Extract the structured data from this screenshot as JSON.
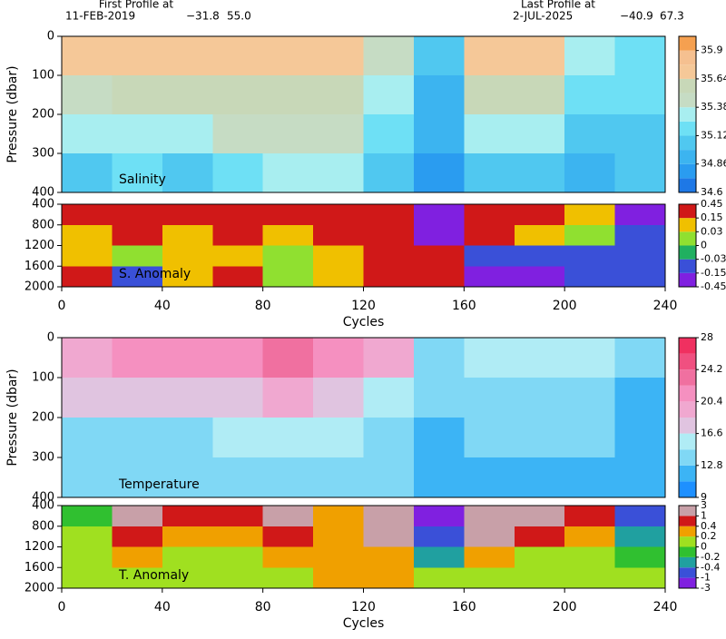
{
  "header": {
    "first_title": "First Profile at",
    "first_date": "11-FEB-2019",
    "first_lat": "−31.8",
    "first_lon": "55.0",
    "last_title": "Last Profile at",
    "last_date": "2-JUL-2025",
    "last_lat": "−40.9",
    "last_lon": "67.3"
  },
  "chart_data": [
    {
      "type": "heatmap",
      "label": "Salinity",
      "ylabel": "Pressure (dbar)",
      "xlim": [
        0,
        240
      ],
      "ylim": [
        0,
        400
      ],
      "yticks": [
        0,
        100,
        200,
        300,
        400
      ],
      "x_bins": [
        0,
        20,
        40,
        60,
        80,
        100,
        120,
        140,
        160,
        180,
        200,
        220,
        240
      ],
      "y_bins": [
        0,
        100,
        200,
        300,
        400
      ],
      "values": [
        [
          35.7,
          35.75,
          35.7,
          35.7,
          35.75,
          35.7,
          35.4,
          35.0,
          35.7,
          35.7,
          35.3,
          35.2
        ],
        [
          35.5,
          35.6,
          35.55,
          35.6,
          35.6,
          35.6,
          35.3,
          34.95,
          35.6,
          35.6,
          35.2,
          35.15
        ],
        [
          35.25,
          35.35,
          35.3,
          35.4,
          35.45,
          35.45,
          35.2,
          34.9,
          35.3,
          35.35,
          35.1,
          35.1
        ],
        [
          35.05,
          35.15,
          35.1,
          35.2,
          35.25,
          35.25,
          35.05,
          34.8,
          35.1,
          35.1,
          34.95,
          35.0
        ]
      ],
      "levels": [
        34.6,
        34.73,
        34.86,
        34.99,
        35.12,
        35.25,
        35.38,
        35.51,
        35.64,
        35.77,
        35.9,
        36.03
      ],
      "colors": [
        "#1e78e6",
        "#2a9cf0",
        "#3cb4f0",
        "#50c8f0",
        "#6ee0f5",
        "#a8eef0",
        "#c6dcc4",
        "#c8d8b8",
        "#f5c898",
        "#f5c090",
        "#f5a050"
      ],
      "cticks": [
        34.6,
        34.86,
        35.12,
        35.38,
        35.64,
        35.9
      ]
    },
    {
      "type": "heatmap",
      "label": "S. Anomaly",
      "xlabel": "Cycles",
      "xlim": [
        0,
        240
      ],
      "xticks": [
        0,
        40,
        80,
        120,
        160,
        200,
        240
      ],
      "ylim": [
        400,
        2000
      ],
      "yticks": [
        400,
        800,
        1200,
        1600,
        2000
      ],
      "x_bins": [
        0,
        20,
        40,
        60,
        80,
        100,
        120,
        140,
        160,
        180,
        200,
        220,
        240
      ],
      "y_bins": [
        400,
        800,
        1200,
        1600,
        2000
      ],
      "values": [
        [
          0.2,
          0.3,
          0.2,
          0.3,
          0.2,
          0.3,
          0.3,
          -0.4,
          0.3,
          0.3,
          0.1,
          -0.2
        ],
        [
          0.05,
          0.2,
          0.1,
          0.2,
          0.1,
          0.2,
          0.2,
          -0.3,
          0.2,
          0.1,
          0.0,
          -0.1
        ],
        [
          0.1,
          0.0,
          0.05,
          0.05,
          0.0,
          0.1,
          0.2,
          0.15,
          -0.1,
          -0.1,
          -0.05,
          -0.05
        ],
        [
          0.2,
          -0.05,
          0.1,
          0.15,
          0.0,
          0.1,
          0.2,
          0.2,
          -0.2,
          -0.2,
          -0.05,
          -0.05
        ]
      ],
      "levels": [
        -0.45,
        -0.15,
        -0.03,
        0,
        0.03,
        0.15,
        0.45
      ],
      "colors": [
        "#8020e0",
        "#3a50d8",
        "#20b060",
        "#90e030",
        "#f0c000",
        "#d01818"
      ],
      "cticks": [
        0.45,
        0.15,
        0.03,
        0,
        -0.03,
        -0.15,
        -0.45
      ]
    },
    {
      "type": "heatmap",
      "label": "Temperature",
      "ylabel": "Pressure (dbar)",
      "xlim": [
        0,
        240
      ],
      "ylim": [
        0,
        400
      ],
      "yticks": [
        0,
        100,
        200,
        300,
        400
      ],
      "x_bins": [
        0,
        20,
        40,
        60,
        80,
        100,
        120,
        140,
        160,
        180,
        200,
        220,
        240
      ],
      "y_bins": [
        0,
        100,
        200,
        300,
        400
      ],
      "values": [
        [
          20,
          21,
          22,
          21,
          24,
          21,
          19,
          14,
          16,
          15,
          15,
          13
        ],
        [
          17,
          17,
          17,
          17,
          19,
          17,
          16,
          13,
          14,
          14,
          14,
          12.5
        ],
        [
          14,
          14,
          14,
          15,
          16,
          15,
          14,
          12,
          13,
          13,
          13,
          12
        ],
        [
          13,
          13,
          13,
          14,
          14,
          14,
          13,
          11,
          12,
          12,
          12,
          11
        ]
      ],
      "levels": [
        9,
        10.9,
        12.8,
        14.7,
        16.6,
        18.5,
        20.4,
        22.3,
        24.2,
        26.1,
        28
      ],
      "colors": [
        "#1e90ff",
        "#3cb4f5",
        "#80d8f5",
        "#b0ecf5",
        "#e0c4e0",
        "#f0a8d0",
        "#f590c0",
        "#f070a0",
        "#f05080",
        "#f03060"
      ],
      "cticks": [
        9,
        12.8,
        16.6,
        20.4,
        24.2,
        28
      ]
    },
    {
      "type": "heatmap",
      "label": "T. Anomaly",
      "xlabel": "Cycles",
      "xlim": [
        0,
        240
      ],
      "xticks": [
        0,
        40,
        80,
        120,
        160,
        200,
        240
      ],
      "ylim": [
        400,
        2000
      ],
      "yticks": [
        400,
        800,
        1200,
        1600,
        2000
      ],
      "x_bins": [
        0,
        20,
        40,
        60,
        80,
        100,
        120,
        140,
        160,
        180,
        200,
        220,
        240
      ],
      "y_bins": [
        400,
        800,
        1200,
        1600,
        2000
      ],
      "values": [
        [
          -0.1,
          1,
          0.5,
          0.5,
          1,
          0.3,
          1.5,
          -2,
          1.5,
          1.5,
          0.5,
          -0.5
        ],
        [
          0.1,
          0.5,
          0.3,
          0.3,
          0.5,
          0.2,
          1,
          -1,
          1,
          0.5,
          0.2,
          -0.3
        ],
        [
          0.1,
          0.2,
          0.1,
          0.1,
          0.2,
          0.3,
          0.3,
          -0.3,
          0.2,
          0.1,
          0.0,
          -0.1
        ],
        [
          0.05,
          0.1,
          0.0,
          0.05,
          0.1,
          0.3,
          0.2,
          0.1,
          0.1,
          0.0,
          0.0,
          0.0
        ]
      ],
      "levels": [
        -3,
        -1,
        -0.4,
        -0.2,
        0,
        0.2,
        0.4,
        1,
        3
      ],
      "colors": [
        "#8020e0",
        "#3a50d8",
        "#20a0a0",
        "#30c030",
        "#a0e020",
        "#f0a000",
        "#d01818",
        "#c8a0a8"
      ],
      "cticks": [
        3,
        1,
        0.4,
        0.2,
        0,
        -0.2,
        -0.4,
        -1,
        -3
      ]
    }
  ]
}
